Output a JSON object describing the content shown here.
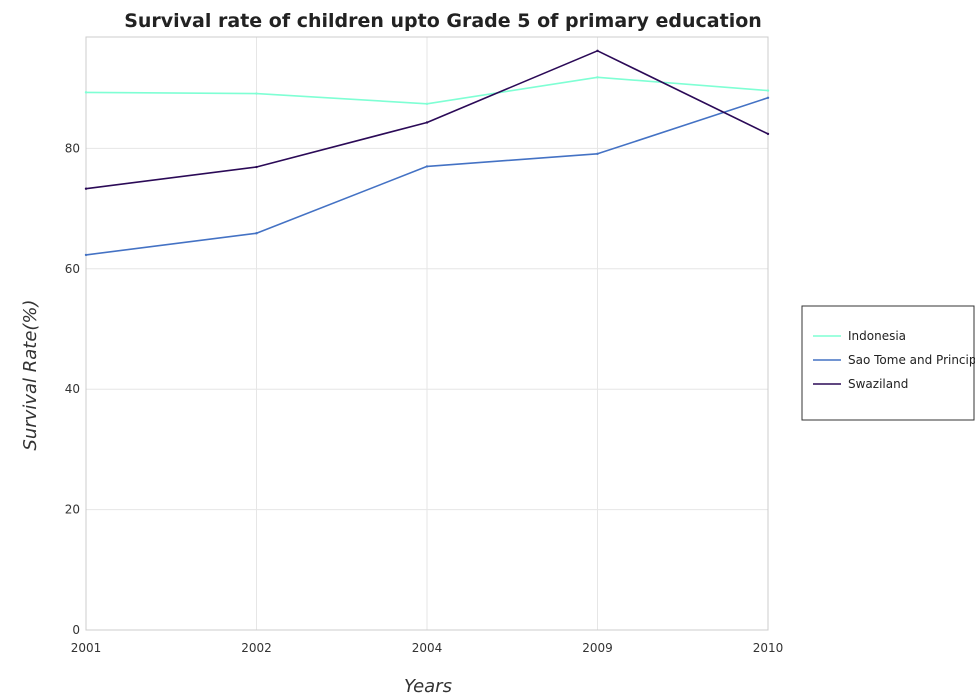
{
  "chart_data": {
    "type": "line",
    "title": "Survival rate of children upto Grade 5 of primary education",
    "xlabel": "Years",
    "ylabel": "Survival Rate(%)",
    "categories": [
      "2001",
      "2002",
      "2004",
      "2009",
      "2010"
    ],
    "ylim": [
      0,
      98.5
    ],
    "yticks": [
      0,
      20,
      40,
      60,
      80
    ],
    "grid": true,
    "legend_position": "right",
    "series": [
      {
        "name": "Indonesia",
        "color": "#7fffd4",
        "values": [
          89.3,
          89.1,
          87.4,
          91.8,
          89.6
        ]
      },
      {
        "name": "Sao Tome and Principe",
        "color": "#4472c4",
        "values": [
          62.3,
          65.9,
          77.0,
          79.1,
          88.4
        ]
      },
      {
        "name": "Swaziland",
        "color": "#2b0a57",
        "values": [
          73.3,
          76.9,
          84.3,
          96.2,
          82.4
        ]
      }
    ]
  }
}
